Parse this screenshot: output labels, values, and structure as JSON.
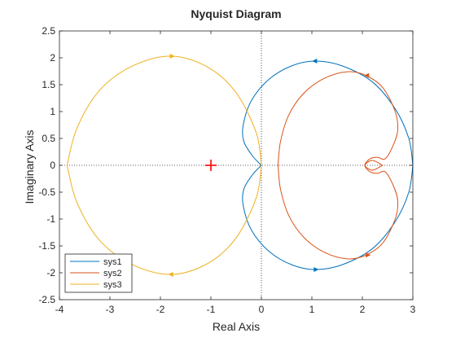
{
  "chart_data": {
    "type": "line",
    "title": "Nyquist Diagram",
    "xlabel": "Real Axis",
    "ylabel": "Imaginary Axis",
    "xlim": [
      -4,
      3
    ],
    "ylim": [
      -2.5,
      2.5
    ],
    "xticks": [
      "-4",
      "-3",
      "-2",
      "-1",
      "0",
      "1",
      "2",
      "3"
    ],
    "yticks": [
      "-2.5",
      "-2",
      "-1.5",
      "-1",
      "-0.5",
      "0",
      "0.5",
      "1",
      "1.5",
      "2",
      "2.5"
    ],
    "grid": false,
    "legend_position": "bottom-left",
    "critical_point": {
      "x": -1,
      "y": 0,
      "marker": "+",
      "color": "#ff0000"
    },
    "series": [
      {
        "name": "sys1",
        "color": "#0072bd",
        "x": [
          0.0,
          -0.18,
          -0.35,
          -0.36,
          -0.2,
          0.15,
          0.6,
          1.07,
          1.6,
          2.2,
          2.65,
          2.92,
          3.0
        ],
        "y": [
          0.0,
          0.18,
          0.45,
          0.75,
          1.2,
          1.6,
          1.85,
          1.94,
          1.85,
          1.55,
          1.05,
          0.5,
          0.0
        ],
        "arrows": [
          {
            "x": 1.07,
            "y": 1.94
          },
          {
            "x": 1.07,
            "y": -1.94
          }
        ]
      },
      {
        "name": "sys2",
        "color": "#d95319",
        "x": [
          0.33,
          0.38,
          0.55,
          0.85,
          1.25,
          1.7,
          2.05,
          2.4,
          2.65,
          2.7,
          2.6,
          2.45,
          2.3,
          2.15,
          2.05,
          2.2,
          2.4
        ],
        "y": [
          0.0,
          0.45,
          0.95,
          1.35,
          1.62,
          1.74,
          1.68,
          1.45,
          1.0,
          0.65,
          0.35,
          0.12,
          0.15,
          0.12,
          0.0,
          -0.09,
          0.0
        ],
        "arrows": [
          {
            "x": 2.1,
            "y": 1.67
          },
          {
            "x": 2.1,
            "y": -1.67
          }
        ]
      },
      {
        "name": "sys3",
        "color": "#edb120",
        "x": [
          0.0,
          -0.1,
          -0.5,
          -1.05,
          -1.78,
          -2.55,
          -3.2,
          -3.65,
          -3.85
        ],
        "y": [
          0.0,
          0.6,
          1.35,
          1.82,
          2.03,
          1.85,
          1.4,
          0.7,
          0.0
        ],
        "arrows": [
          {
            "x": -1.78,
            "y": 2.03
          },
          {
            "x": -1.78,
            "y": -2.03
          }
        ]
      }
    ]
  }
}
